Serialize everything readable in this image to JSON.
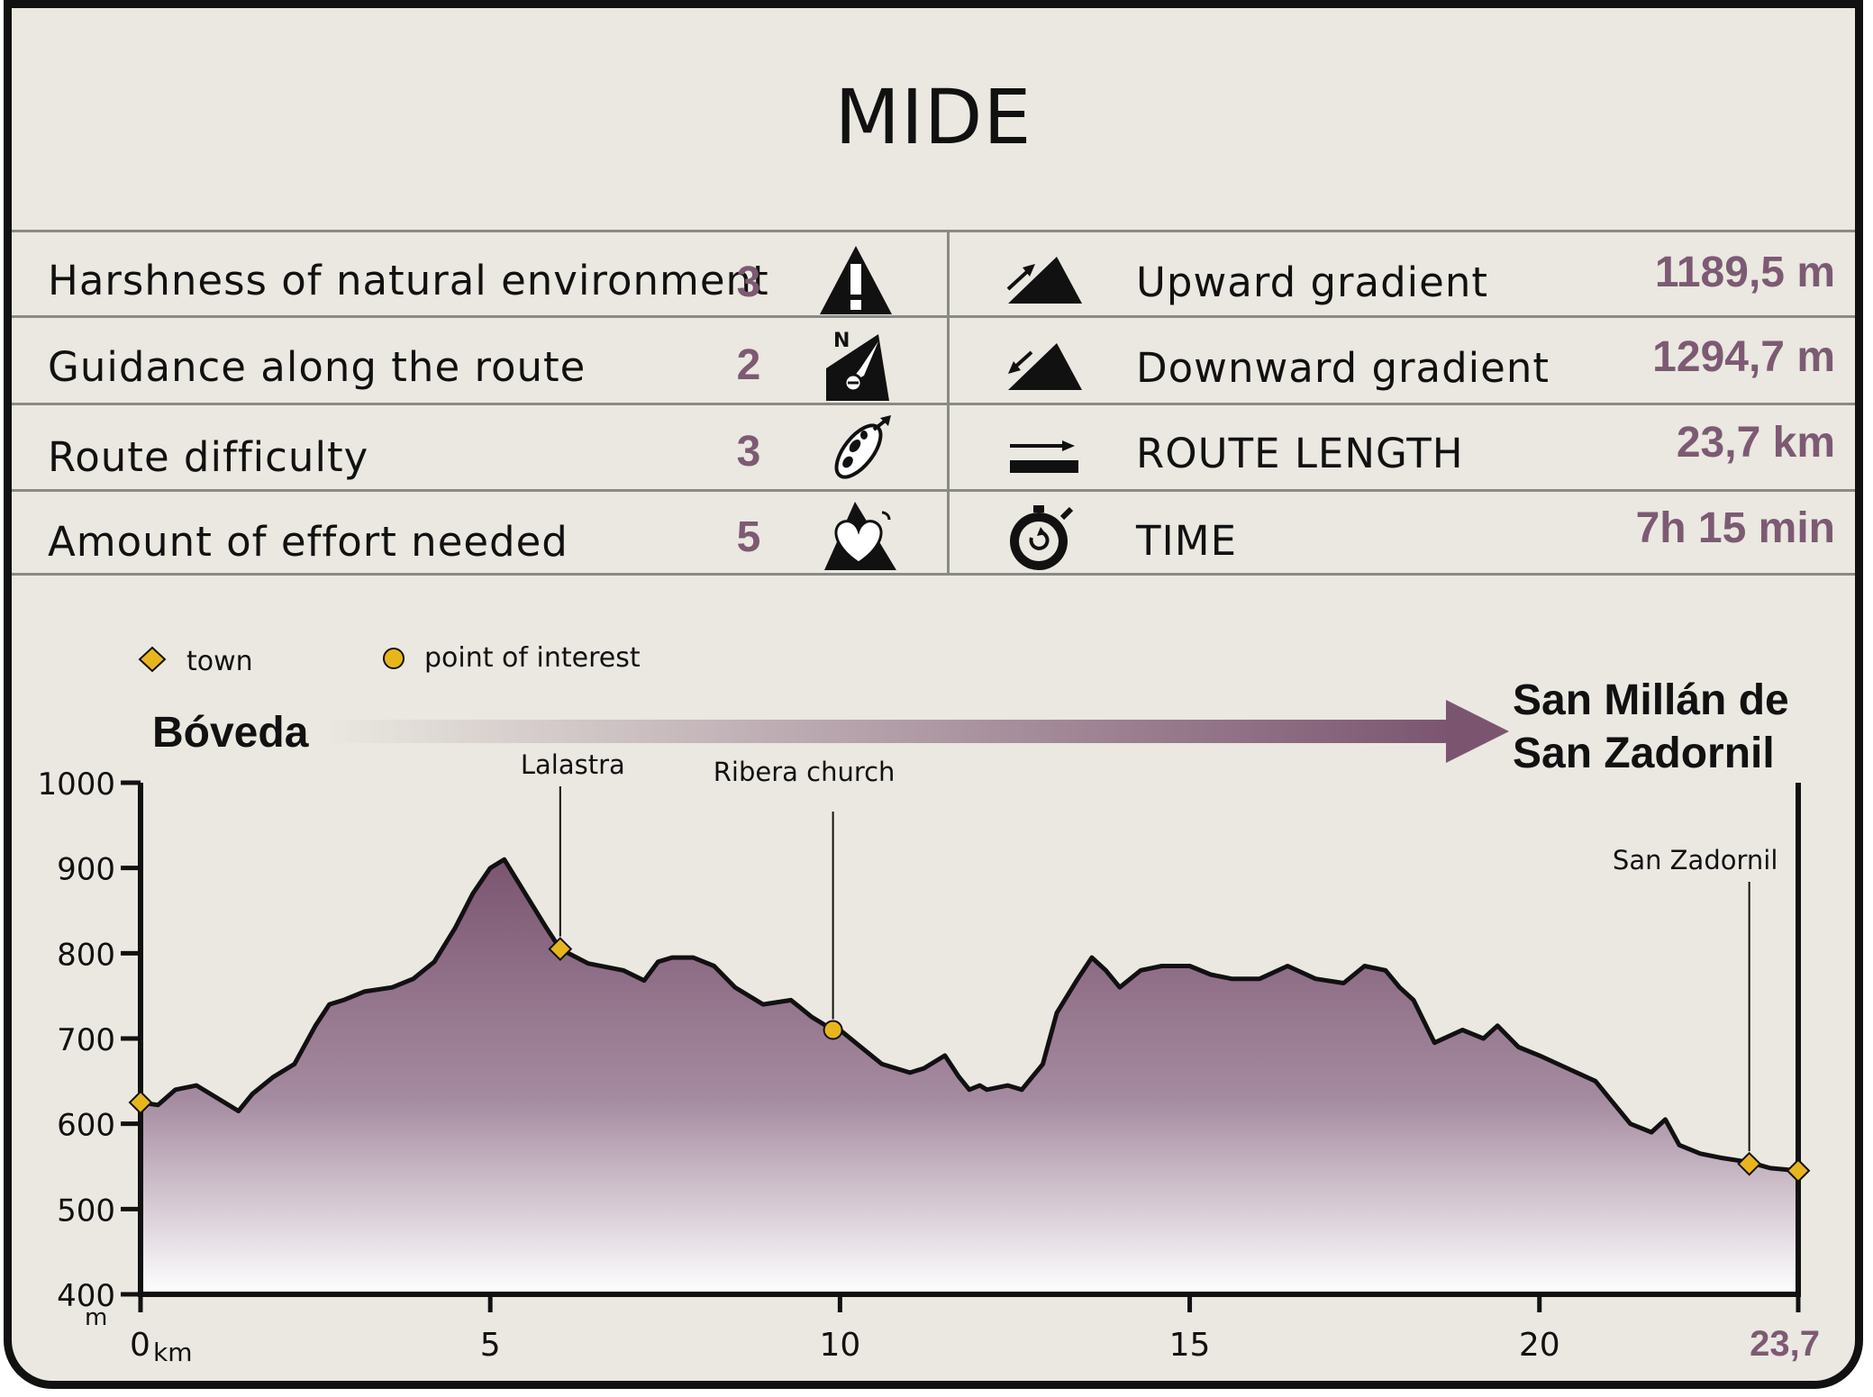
{
  "title": "MIDE",
  "mide": [
    {
      "label": "Harshness of natural environment",
      "score": "3",
      "icon": "warning-triangle-icon"
    },
    {
      "label": "Guidance along the route",
      "score": "2",
      "icon": "compass-north-icon"
    },
    {
      "label": "Route difficulty",
      "score": "3",
      "icon": "footprint-icon"
    },
    {
      "label": "Amount of effort needed",
      "score": "5",
      "icon": "heart-mountain-icon"
    }
  ],
  "stats": [
    {
      "label": "Upward gradient",
      "value": "1189,5 m",
      "icon": "upward-gradient-icon"
    },
    {
      "label": "Downward gradient",
      "value": "1294,7 m",
      "icon": "downward-gradient-icon"
    },
    {
      "label": "ROUTE LENGTH",
      "value": "23,7 km",
      "icon": "route-length-icon"
    },
    {
      "label": "TIME",
      "value": "7h 15 min",
      "icon": "stopwatch-icon"
    }
  ],
  "colors": {
    "accent": "#7d5a73",
    "profile_top": "#7b5570",
    "profile_bottom": "#ffffff",
    "marker": "#e8b51d",
    "panel_bg": "#eae8e0"
  },
  "legend": {
    "town": "town",
    "poi": "point of interest"
  },
  "route": {
    "start": "Bóveda",
    "end_line1": "San Millán de",
    "end_line2": "San Zadornil"
  },
  "chart_data": {
    "type": "area",
    "title": "",
    "xlabel": "km",
    "ylabel": "m",
    "xlim": [
      0,
      23.7
    ],
    "ylim": [
      400,
      1000
    ],
    "x_ticks": [
      0,
      5,
      10,
      15,
      20,
      23.7
    ],
    "x_tick_labels": [
      "0",
      "5",
      "10",
      "15",
      "20",
      "23,7"
    ],
    "y_ticks": [
      400,
      500,
      600,
      700,
      800,
      900,
      1000
    ],
    "y_tick_labels": [
      "400",
      "500",
      "600",
      "700",
      "800",
      "900",
      "1000"
    ],
    "grid": false,
    "legend_position": "top-left",
    "series": [
      {
        "x": [
          0,
          0.25,
          0.5,
          0.8,
          1.1,
          1.4,
          1.6,
          1.9,
          2.2,
          2.5,
          2.7,
          2.9,
          3.2,
          3.6,
          3.9,
          4.2,
          4.5,
          4.75,
          5.0,
          5.2,
          5.5,
          5.8,
          6.0,
          6.4,
          6.9,
          7.2,
          7.4,
          7.6,
          7.9,
          8.2,
          8.5,
          8.9,
          9.3,
          9.6,
          9.8,
          10.0,
          10.3,
          10.6,
          11.0,
          11.2,
          11.5,
          11.7,
          11.85,
          12.0,
          12.1,
          12.4,
          12.6,
          12.9,
          13.1,
          13.4,
          13.6,
          13.8,
          14.0,
          14.3,
          14.6,
          15.0,
          15.3,
          15.6,
          16.0,
          16.4,
          16.8,
          17.2,
          17.5,
          17.8,
          18.0,
          18.2,
          18.5,
          18.9,
          19.2,
          19.4,
          19.7,
          20.0,
          20.4,
          20.8,
          21.0,
          21.3,
          21.6,
          21.8,
          22.0,
          22.3,
          22.6,
          23.0,
          23.3,
          23.7
        ],
        "y": [
          625,
          622,
          640,
          645,
          630,
          615,
          635,
          655,
          670,
          715,
          740,
          745,
          755,
          760,
          770,
          790,
          830,
          870,
          900,
          910,
          870,
          830,
          805,
          788,
          780,
          768,
          790,
          795,
          795,
          785,
          760,
          740,
          745,
          725,
          715,
          710,
          690,
          670,
          660,
          665,
          680,
          655,
          640,
          645,
          640,
          645,
          640,
          670,
          730,
          770,
          795,
          780,
          760,
          780,
          785,
          785,
          775,
          770,
          770,
          785,
          770,
          765,
          785,
          780,
          760,
          745,
          695,
          710,
          700,
          715,
          690,
          680,
          665,
          650,
          630,
          600,
          590,
          605,
          575,
          565,
          560,
          555,
          548,
          545
        ]
      }
    ],
    "towns": [
      {
        "name": "",
        "x": 0,
        "y": 625
      },
      {
        "name": "Lalastra",
        "x": 6.0,
        "y": 805
      },
      {
        "name": "San Zadornil",
        "x": 23.0,
        "y": 553
      },
      {
        "name": "",
        "x": 23.7,
        "y": 545
      }
    ],
    "points_of_interest": [
      {
        "name": "Ribera church",
        "x": 9.9,
        "y": 710
      }
    ]
  }
}
